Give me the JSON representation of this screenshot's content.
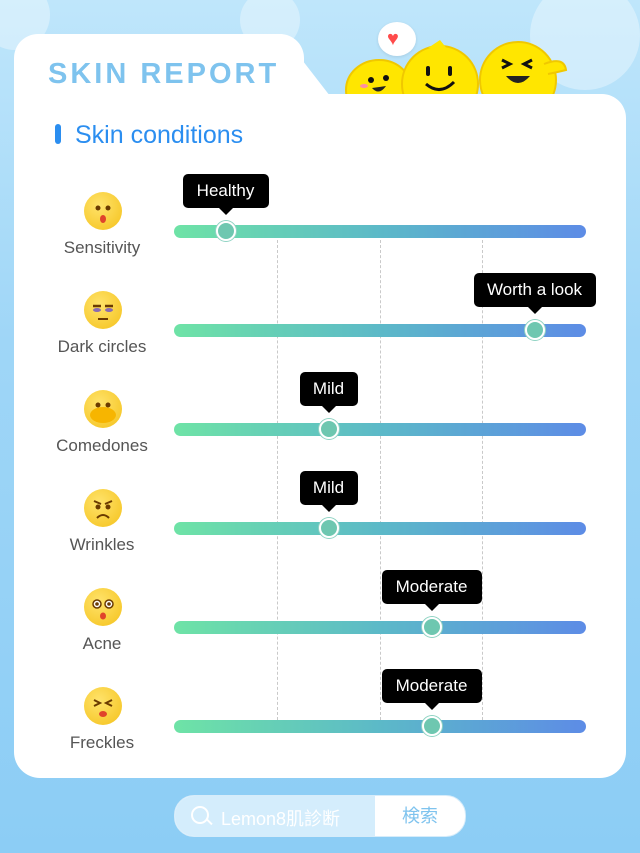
{
  "header": {
    "title": "SKIN REPORT"
  },
  "section": {
    "title": "Skin conditions"
  },
  "colors": {
    "accent": "#2b8ef0",
    "title": "#7ec3ee",
    "track_start": "#6ee3a6",
    "track_end": "#5d8ce6"
  },
  "conditions": [
    {
      "label": "Sensitivity",
      "rating": "Healthy",
      "level": 0.125,
      "icon": "kiss-face-icon"
    },
    {
      "label": "Dark circles",
      "rating": "Worth a look",
      "level": 0.875,
      "icon": "tired-face-icon"
    },
    {
      "label": "Comedones",
      "rating": "Mild",
      "level": 0.375,
      "icon": "covered-face-icon"
    },
    {
      "label": "Wrinkles",
      "rating": "Mild",
      "level": 0.375,
      "icon": "frown-face-icon"
    },
    {
      "label": "Acne",
      "rating": "Moderate",
      "level": 0.625,
      "icon": "surprised-face-icon"
    },
    {
      "label": "Freckles",
      "rating": "Moderate",
      "level": 0.625,
      "icon": "squint-face-icon"
    }
  ],
  "search": {
    "query": "Lemon8肌診断",
    "button_label": "検索"
  }
}
